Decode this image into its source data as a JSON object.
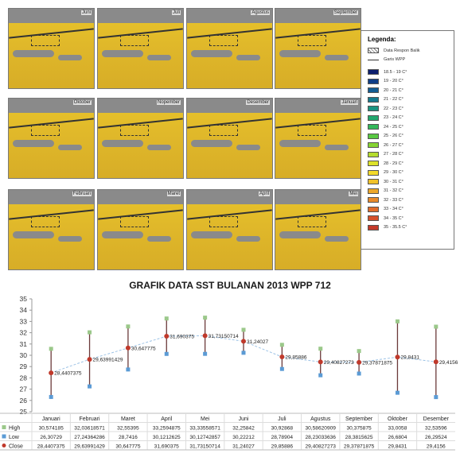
{
  "maps": [
    {
      "label": "Juni"
    },
    {
      "label": "Juli"
    },
    {
      "label": "Agustus"
    },
    {
      "label": "September"
    },
    {
      "label": "Oktober"
    },
    {
      "label": "Nopember"
    },
    {
      "label": "Desember"
    },
    {
      "label": "Januari"
    },
    {
      "label": "Februari"
    },
    {
      "label": "Maret"
    },
    {
      "label": "April"
    },
    {
      "label": "Mei"
    }
  ],
  "legend": {
    "title": "Legenda:",
    "items": [
      {
        "label": "Data Respon Balik",
        "color": "#ffffff"
      },
      {
        "label": "Garis WPP",
        "color": "#333333"
      }
    ],
    "scale": [
      {
        "label": "18.5 - 19 C°",
        "color": "#0d1f6e"
      },
      {
        "label": "19 - 20 C°",
        "color": "#0f3d86"
      },
      {
        "label": "20 - 21 C°",
        "color": "#135c93"
      },
      {
        "label": "21 - 22 C°",
        "color": "#167a8e"
      },
      {
        "label": "22 - 23 C°",
        "color": "#1a9481"
      },
      {
        "label": "23 - 24 C°",
        "color": "#22a86e"
      },
      {
        "label": "24 - 25 C°",
        "color": "#33b85a"
      },
      {
        "label": "25 - 26 C°",
        "color": "#58c842"
      },
      {
        "label": "26 - 27 C°",
        "color": "#86d432"
      },
      {
        "label": "27 - 28 C°",
        "color": "#b5dc2e"
      },
      {
        "label": "28 - 29 C°",
        "color": "#dde22a"
      },
      {
        "label": "29 - 30 C°",
        "color": "#f2d92a"
      },
      {
        "label": "30 - 31 C°",
        "color": "#f0c22a"
      },
      {
        "label": "31 - 32 C°",
        "color": "#eca72a"
      },
      {
        "label": "32 - 33 C°",
        "color": "#e88a2a"
      },
      {
        "label": "33 - 34 C°",
        "color": "#e06c2a"
      },
      {
        "label": "34 - 35 C°",
        "color": "#d54f2a"
      },
      {
        "label": "35 - 35.5 C°",
        "color": "#c43a2a"
      }
    ]
  },
  "chart_data": {
    "type": "stock",
    "title": "GRAFIK DATA SST BULANAN 2013 WPP 712",
    "categories": [
      "Januari",
      "Februari",
      "Maret",
      "April",
      "Mei",
      "Juni",
      "Juli",
      "Agustus",
      "September",
      "Oktober",
      "Desember"
    ],
    "ylim": [
      25,
      35
    ],
    "yticks": [
      25,
      26,
      27,
      28,
      29,
      30,
      31,
      32,
      33,
      34,
      35
    ],
    "grid": false,
    "legend_position": "table-left",
    "series": [
      {
        "name": "High",
        "color": "#9bc88a",
        "values": [
          30.574185,
          32.03618571,
          32.55395,
          33.2594875,
          33.33558571,
          32.25842,
          30.92868,
          30.58620909,
          30.375875,
          33.0058,
          32.53596
        ],
        "labels": [
          "30,574185",
          "32,03618571",
          "32,55395",
          "33,2594875",
          "33,33558571",
          "32,25842",
          "30,92868",
          "30,58620909",
          "30,375875",
          "33,0058",
          "32,53596"
        ]
      },
      {
        "name": "Low",
        "color": "#5b9bd5",
        "values": [
          26.30729,
          27.24364286,
          28.7416,
          30.1212625,
          30.12742857,
          30.22212,
          28.78904,
          28.23033636,
          28.3815625,
          26.6804,
          26.29524
        ],
        "labels": [
          "26,30729",
          "27,24364286",
          "28,7416",
          "30,1212625",
          "30,12742857",
          "30,22212",
          "28,78904",
          "28,23033636",
          "28,3815625",
          "26,6804",
          "26,29524"
        ]
      },
      {
        "name": "Close",
        "color": "#c0392b",
        "values": [
          28.4407375,
          29.63991429,
          30.647775,
          31.690375,
          31.73150714,
          31.24027,
          29.85886,
          29.40827273,
          29.37871875,
          29.8431,
          29.4156
        ],
        "labels": [
          "28,4407375",
          "29,63991429",
          "30,647775",
          "31,690375",
          "31,73150714",
          "31,24027",
          "29,85886",
          "29,40827273",
          "29,37871875",
          "29,8431",
          "29,4156"
        ]
      }
    ]
  }
}
